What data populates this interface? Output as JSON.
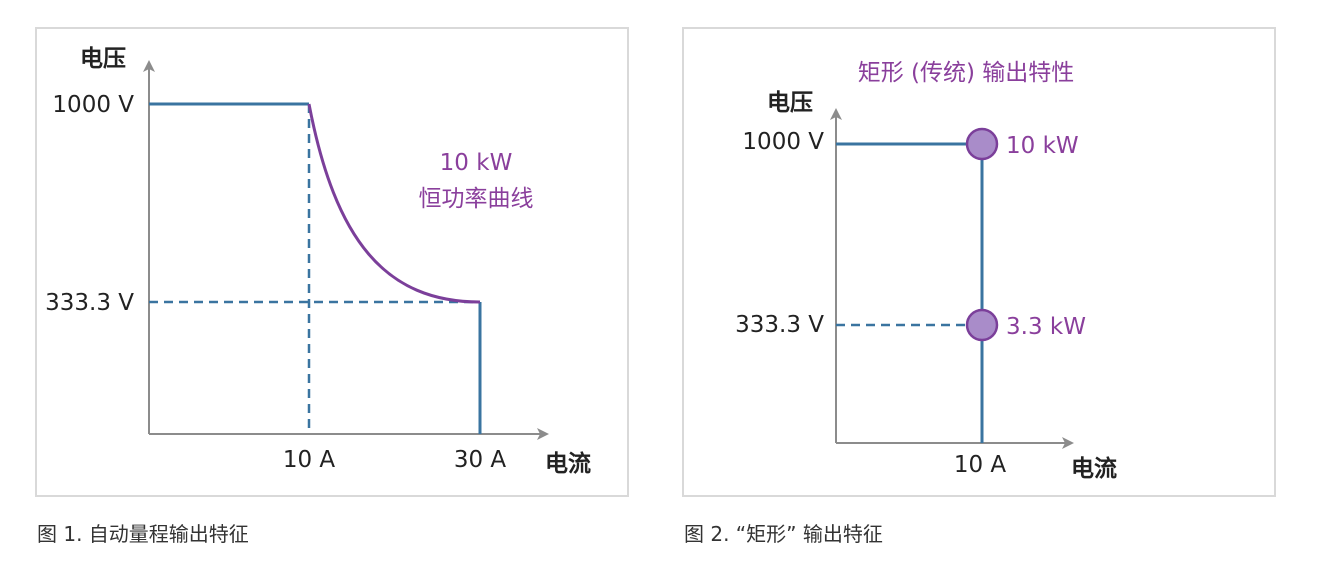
{
  "colors": {
    "line": "#3a74a0",
    "curve": "#7b3f9a",
    "accent_text": "#8a3f9c",
    "circle_fill": "#a98cc9",
    "axis": "#8c8c8c"
  },
  "figure1": {
    "y_axis_label": "电压",
    "x_axis_label": "电流",
    "ticks": {
      "v_high": "1000 V",
      "v_low": "333.3 V",
      "i1": "10 A",
      "i2": "30 A"
    },
    "curve_label_line1": "10 kW",
    "curve_label_line2": "恒功率曲线",
    "caption": "图 1. 自动量程输出特征"
  },
  "figure2": {
    "title": "矩形 (传统) 输出特性",
    "y_axis_label": "电压",
    "x_axis_label": "电流",
    "ticks": {
      "v_high": "1000 V",
      "v_low": "333.3 V",
      "i1": "10 A"
    },
    "point_high_label": "10 kW",
    "point_low_label": "3.3 kW",
    "caption": "图 2. “矩形” 输出特征"
  }
}
